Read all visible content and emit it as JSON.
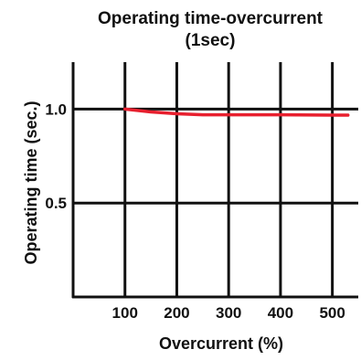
{
  "chart_data": {
    "type": "line",
    "title": "Operating time-overcurrent",
    "subtitle": "(1sec)",
    "xlabel": "Overcurrent (%)",
    "ylabel": "Operating time (sec.)",
    "x_ticks": [
      "100",
      "200",
      "300",
      "400",
      "500"
    ],
    "y_ticks": [
      "0.5",
      "1.0"
    ],
    "xlim": [
      0,
      550
    ],
    "ylim": [
      0,
      1.25
    ],
    "grid": true,
    "series": [
      {
        "color": "#e8202f",
        "x": [
          100,
          150,
          200,
          250,
          300,
          400,
          500,
          530
        ],
        "y": [
          1.0,
          0.985,
          0.975,
          0.97,
          0.97,
          0.97,
          0.968,
          0.968
        ]
      }
    ],
    "colors": {
      "grid": "#111111",
      "line": "#e8202f"
    }
  }
}
